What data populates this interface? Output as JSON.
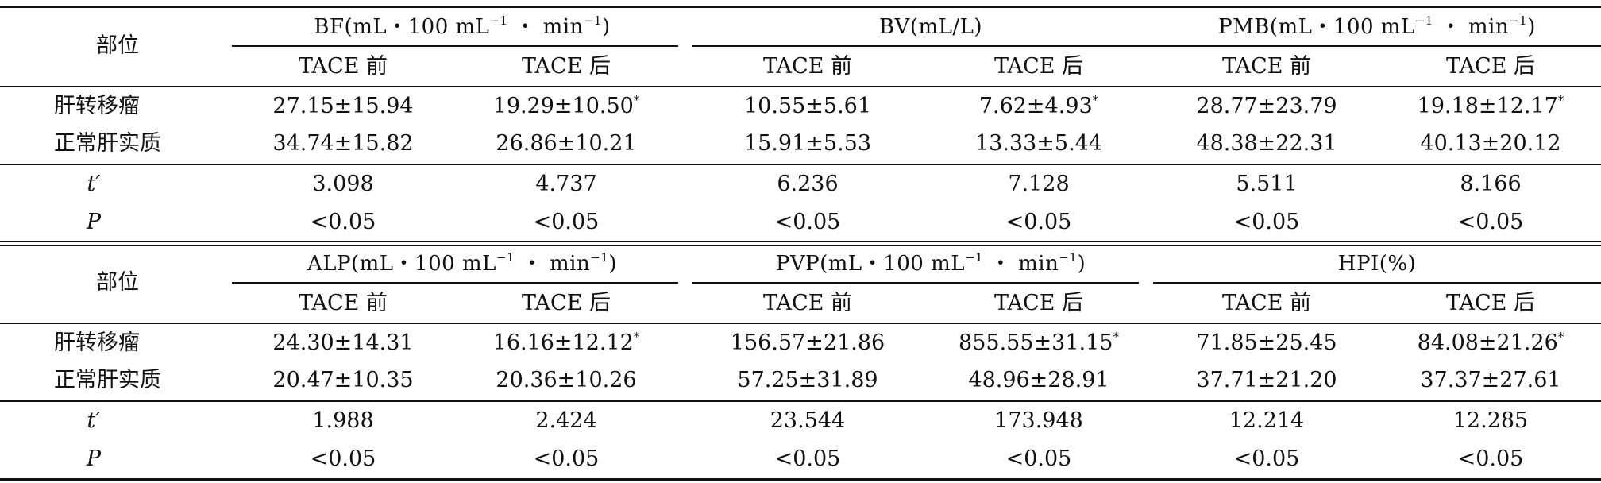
{
  "blocks": [
    {
      "header_label": "部位",
      "groups": [
        {
          "title": "BF(mL・100 mL",
          "sup": "−1",
          "mid": " ・ min",
          "sup2": "−1",
          "end": ")"
        },
        {
          "title": "BV(mL/L)",
          "sup": "",
          "mid": "",
          "sup2": "",
          "end": ""
        },
        {
          "title": "PMB(mL・100 mL",
          "sup": "−1",
          "mid": " ・ min",
          "sup2": "−1",
          "end": ")"
        }
      ],
      "subheads": [
        "TACE 前",
        "TACE 后",
        "TACE 前",
        "TACE 后",
        "TACE 前",
        "TACE 后"
      ],
      "rows": [
        {
          "label": "肝转移瘤",
          "values": [
            "27.15±15.94",
            "19.29±10.50",
            "10.55±5.61",
            "7.62±4.93",
            "28.77±23.79",
            "19.18±12.17"
          ],
          "marks": [
            "",
            "*",
            "",
            "*",
            "",
            "*"
          ]
        },
        {
          "label": "正常肝实质",
          "values": [
            "34.74±15.82",
            "26.86±10.21",
            "15.91±5.53",
            "13.33±5.44",
            "48.38±22.31",
            "40.13±20.12"
          ],
          "marks": [
            "",
            "",
            "",
            "",
            "",
            ""
          ]
        }
      ],
      "stats": [
        {
          "label": "t′",
          "values": [
            "3.098",
            "4.737",
            "6.236",
            "7.128",
            "5.511",
            "8.166"
          ]
        },
        {
          "label": "P",
          "values": [
            "<0.05",
            "<0.05",
            "<0.05",
            "<0.05",
            "<0.05",
            "<0.05"
          ]
        }
      ]
    },
    {
      "header_label": "部位",
      "groups": [
        {
          "title": "ALP(mL・100 mL",
          "sup": "−1",
          "mid": " ・ min",
          "sup2": "−1",
          "end": ")"
        },
        {
          "title": "PVP(mL・100 mL",
          "sup": "−1",
          "mid": " ・ min",
          "sup2": "−1",
          "end": ")"
        },
        {
          "title": "HPI(%)",
          "sup": "",
          "mid": "",
          "sup2": "",
          "end": ""
        }
      ],
      "subheads": [
        "TACE 前",
        "TACE 后",
        "TACE 前",
        "TACE 后",
        "TACE 前",
        "TACE 后"
      ],
      "rows": [
        {
          "label": "肝转移瘤",
          "values": [
            "24.30±14.31",
            "16.16±12.12",
            "156.57±21.86",
            "855.55±31.15",
            "71.85±25.45",
            "84.08±21.26"
          ],
          "marks": [
            "",
            "*",
            "",
            "*",
            "",
            "*"
          ]
        },
        {
          "label": "正常肝实质",
          "values": [
            "20.47±10.35",
            "20.36±10.26",
            "57.25±31.89",
            "48.96±28.91",
            "37.71±21.20",
            "37.37±27.61"
          ],
          "marks": [
            "",
            "",
            "",
            "",
            "",
            ""
          ]
        }
      ],
      "stats": [
        {
          "label": "t′",
          "values": [
            "1.988",
            "2.424",
            "23.544",
            "173.948",
            "12.214",
            "12.285"
          ]
        },
        {
          "label": "P",
          "values": [
            "<0.05",
            "<0.05",
            "<0.05",
            "<0.05",
            "<0.05",
            "<0.05"
          ]
        }
      ]
    }
  ]
}
